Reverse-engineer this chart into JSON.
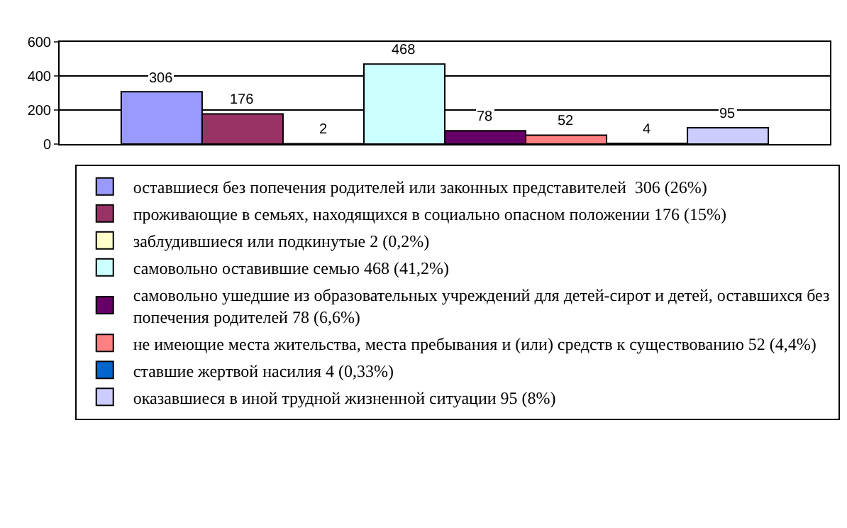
{
  "chart_data": {
    "type": "bar",
    "categories": [
      null
    ],
    "series": [
      {
        "name": "оставшиеся без попечения родителей или законных представителей  306 (26%)",
        "color": "#9999ff",
        "values": [
          306
        ]
      },
      {
        "name": "проживающие в семьях, находящихся в социально опасном положении 176 (15%)",
        "color": "#993366",
        "values": [
          176
        ]
      },
      {
        "name": "заблудившиеся или подкинутые 2 (0,2%)",
        "color": "#ffffcc",
        "values": [
          2
        ]
      },
      {
        "name": "самовольно оставившие семью 468 (41,2%)",
        "color": "#ccffff",
        "values": [
          468
        ]
      },
      {
        "name": "самовольно ушедшие из образовательных учреждений для детей-сирот и детей, оставшихся без попечения родителей 78 (6,6%)",
        "color": "#660066",
        "values": [
          78
        ]
      },
      {
        "name": "не имеющие места жительства, места пребывания и (или) средств к существованию 52 (4,4%)",
        "color": "#ff8080",
        "values": [
          52
        ]
      },
      {
        "name": "ставшие жертвой насилия 4 (0,33%)",
        "color": "#0066cc",
        "values": [
          4
        ]
      },
      {
        "name": "оказавшиеся в иной трудной жизненной ситуации 95 (8%)",
        "color": "#ccccff",
        "values": [
          95
        ]
      }
    ],
    "ylim": [
      0,
      600
    ],
    "yticks": [
      0,
      200,
      400,
      600
    ],
    "grid": "y",
    "legend": "bottom",
    "data_labels": true
  }
}
